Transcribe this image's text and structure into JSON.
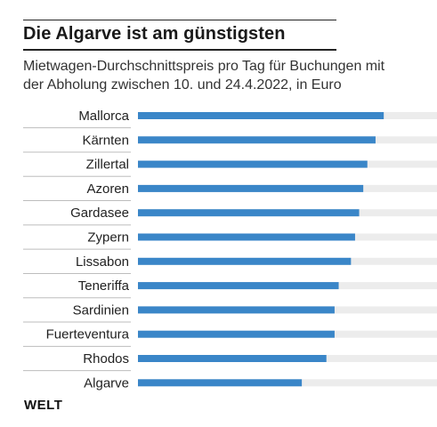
{
  "header": {
    "title": "Die Algarve ist am günstigsten",
    "subtitle_line1": "Mietwagen-Durchschnittspreis pro Tag für Buchungen mit",
    "subtitle_line2": "der Abholung zwischen 10. und 24.4.2022, in Euro"
  },
  "source": {
    "logo": "WELT"
  },
  "colors": {
    "bar": "#3a86c8",
    "track": "#ececec",
    "separator": "#bdbdbd",
    "label": "#222222"
  },
  "chart_data": {
    "type": "bar",
    "orientation": "horizontal",
    "categories": [
      "Mallorca",
      "Kärnten",
      "Zillertal",
      "Azoren",
      "Gardasee",
      "Zypern",
      "Lissabon",
      "Teneriffa",
      "Sardinien",
      "Fuerteventura",
      "Rhodos",
      "Algarve"
    ],
    "values": [
      60,
      58,
      56,
      55,
      54,
      53,
      52,
      49,
      48,
      48,
      46,
      40
    ],
    "xlim": [
      0,
      73
    ],
    "title": "Die Algarve ist am günstigsten",
    "xlabel": "",
    "ylabel": ""
  }
}
